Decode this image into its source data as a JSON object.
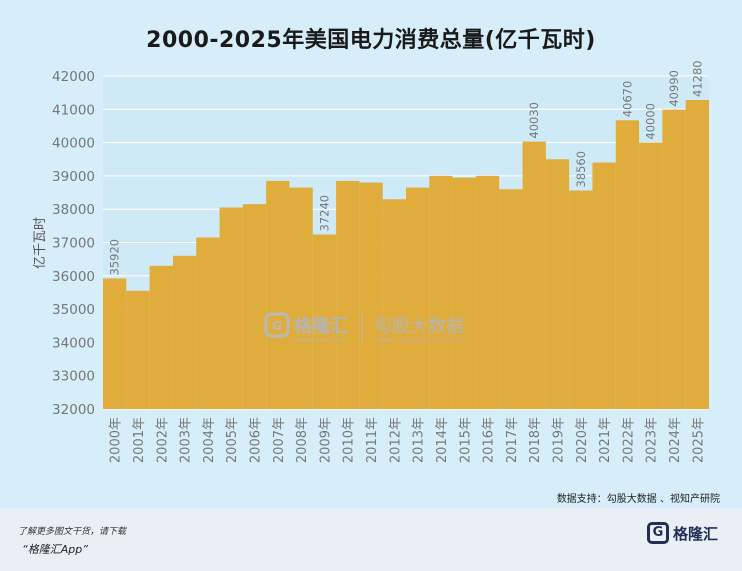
{
  "title": "2000-2025年美国电力消费总量(亿千瓦时)",
  "source": "数据支持：勾股大数据 、视知产研院",
  "watermark": {
    "brand": "格隆汇",
    "site": "www.gelonghui.com",
    "partner": "勾股大数据",
    "partner_site": "www.gogudata.com"
  },
  "footer": {
    "line1": "了解更多图文干货，请下载",
    "line2": "“格隆汇App”",
    "logo_text": "格隆汇"
  },
  "colors": {
    "bar": "#e0ac3c",
    "grid": "#ffffff",
    "background": "#d6eef9"
  },
  "chart_data": {
    "type": "bar",
    "title": "2000-2025年美国电力消费总量(亿千瓦时)",
    "ylabel": "亿千瓦时",
    "xlabel": "",
    "ylim": [
      32000,
      42000
    ],
    "yticks": [
      32000,
      33000,
      34000,
      35000,
      36000,
      37000,
      38000,
      39000,
      40000,
      41000,
      42000
    ],
    "grid": true,
    "categories": [
      "2000年",
      "2001年",
      "2002年",
      "2003年",
      "2004年",
      "2005年",
      "2006年",
      "2007年",
      "2008年",
      "2009年",
      "2010年",
      "2011年",
      "2012年",
      "2013年",
      "2014年",
      "2015年",
      "2016年",
      "2017年",
      "2018年",
      "2019年",
      "2020年",
      "2021年",
      "2022年",
      "2023年",
      "2024年",
      "2025年"
    ],
    "values": [
      35920,
      35550,
      36300,
      36600,
      37150,
      38050,
      38150,
      38850,
      38650,
      37240,
      38850,
      38800,
      38300,
      38650,
      39000,
      38950,
      39000,
      38600,
      40030,
      39500,
      38560,
      39400,
      40670,
      40000,
      40990,
      41280
    ],
    "data_labels": {
      "0": "35920",
      "9": "37240",
      "18": "40030",
      "20": "38560",
      "22": "40670",
      "23": "40000",
      "24": "40990",
      "25": "41280"
    }
  }
}
